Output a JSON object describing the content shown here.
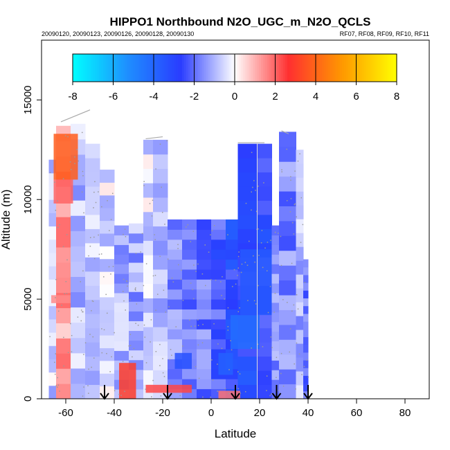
{
  "chart_data": {
    "type": "heatmap",
    "title": "HIPPO1 Northbound N2O_UGC_m_N2O_QCLS",
    "subtitle_left": "20090120, 20090123, 20090126, 20090128, 20090130",
    "subtitle_right": "RF07, RF08, RF09, RF10, RF11",
    "xlabel": "Latitude",
    "ylabel": "Altitude (m)",
    "xlim": [
      -70,
      90
    ],
    "ylim": [
      0,
      18000
    ],
    "x_ticks": [
      -60,
      -40,
      -20,
      0,
      20,
      40,
      60,
      80
    ],
    "y_ticks": [
      0,
      5000,
      10000,
      15000
    ],
    "colorbar": {
      "min": -8,
      "max": 8,
      "ticks": [
        -8,
        -6,
        -4,
        -2,
        0,
        2,
        4,
        6,
        8
      ],
      "colors": [
        "#00ffff",
        "#1e90ff",
        "#2a3cff",
        "#ffffff",
        "#ff3030",
        "#ff9900",
        "#ffff00"
      ]
    },
    "arrow_latitudes": [
      -44,
      -18,
      10,
      27,
      40
    ],
    "columns": [
      {
        "lat0": -67,
        "lat1": -64,
        "alt_top": 12000,
        "value": -0.6
      },
      {
        "lat0": -64,
        "lat1": -58,
        "alt_top": 13700,
        "value": 1.2
      },
      {
        "lat0": -58,
        "lat1": -52,
        "alt_top": 13800,
        "value": -0.9
      },
      {
        "lat0": -52,
        "lat1": -46,
        "alt_top": 12800,
        "value": -0.8
      },
      {
        "lat0": -46,
        "lat1": -40,
        "alt_top": 11500,
        "value": -0.5
      },
      {
        "lat0": -40,
        "lat1": -34,
        "alt_top": 8700,
        "value": -1.0
      },
      {
        "lat0": -34,
        "lat1": -28,
        "alt_top": 8800,
        "value": -1.2
      },
      {
        "lat0": -28,
        "lat1": -24,
        "alt_top": 13000,
        "value": -0.4
      },
      {
        "lat0": -24,
        "lat1": -18,
        "alt_top": 13000,
        "value": -1.1
      },
      {
        "lat0": -18,
        "lat1": -12,
        "alt_top": 9000,
        "value": -1.6
      },
      {
        "lat0": -12,
        "lat1": -6,
        "alt_top": 9000,
        "value": -1.7
      },
      {
        "lat0": -6,
        "lat1": 0,
        "alt_top": 9000,
        "value": -1.8
      },
      {
        "lat0": 0,
        "lat1": 6,
        "alt_top": 9000,
        "value": -2.4
      },
      {
        "lat0": 6,
        "lat1": 11,
        "alt_top": 9000,
        "value": -2.9
      },
      {
        "lat0": 11,
        "lat1": 19,
        "alt_top": 12800,
        "value": -3.0
      },
      {
        "lat0": 19,
        "lat1": 25,
        "alt_top": 12800,
        "value": -2.8
      },
      {
        "lat0": 25,
        "lat1": 28,
        "alt_top": 8700,
        "value": -1.5
      },
      {
        "lat0": 28,
        "lat1": 35,
        "alt_top": 13400,
        "value": -1.6
      },
      {
        "lat0": 35,
        "lat1": 38,
        "alt_top": 12500,
        "value": -1.0
      },
      {
        "lat0": 38,
        "lat1": 40,
        "alt_top": 7000,
        "value": -1.8
      }
    ],
    "anomalies": [
      {
        "lat0": -65,
        "lat1": -55,
        "alt0": 11000,
        "alt1": 13300,
        "value": 3.8
      },
      {
        "lat0": -65,
        "lat1": -57,
        "alt0": 9800,
        "alt1": 11000,
        "value": 2.0
      },
      {
        "lat0": -66,
        "lat1": -58,
        "alt0": 4800,
        "alt1": 5200,
        "value": 1.5
      },
      {
        "lat0": -38,
        "lat1": -31,
        "alt0": 0,
        "alt1": 1800,
        "value": 3.0
      },
      {
        "lat0": -27,
        "lat1": -8,
        "alt0": 300,
        "alt1": 700,
        "value": 2.4
      },
      {
        "lat0": 3,
        "lat1": 12,
        "alt0": 0,
        "alt1": 400,
        "value": 1.8
      },
      {
        "lat0": 8,
        "lat1": 20,
        "alt0": 2500,
        "alt1": 4200,
        "value": -4.3
      },
      {
        "lat0": 12,
        "lat1": 25,
        "alt0": 4200,
        "alt1": 7500,
        "value": -3.6
      },
      {
        "lat0": 3,
        "lat1": 9,
        "alt0": 1200,
        "alt1": 2300,
        "value": -3.8
      },
      {
        "lat0": -15,
        "lat1": -8,
        "alt0": 1500,
        "alt1": 2300,
        "value": -3.3
      }
    ]
  }
}
